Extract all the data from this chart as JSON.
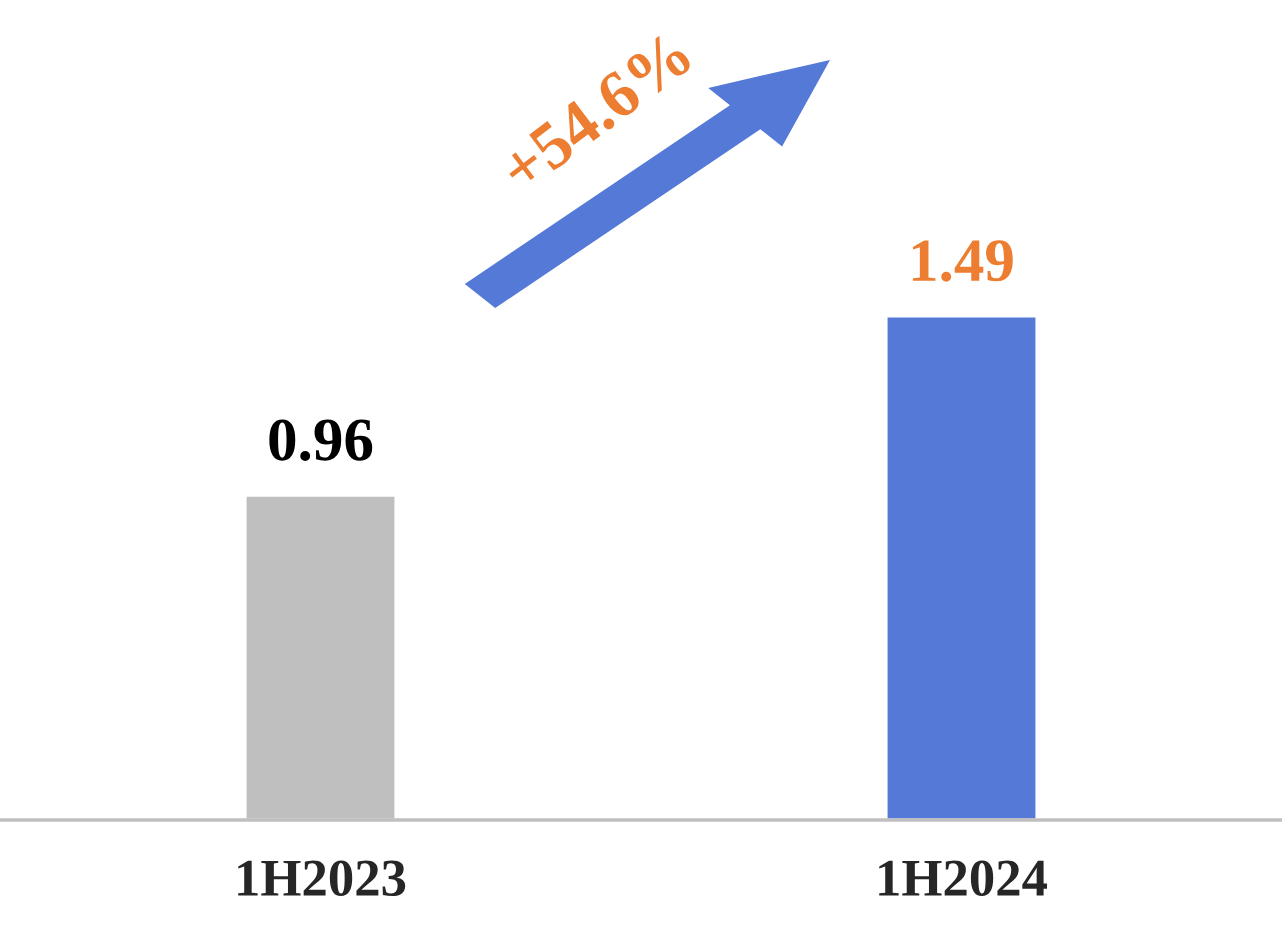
{
  "chart_data": {
    "type": "bar",
    "categories": [
      "1H2023",
      "1H2024"
    ],
    "values": [
      0.96,
      1.49
    ],
    "colors": [
      "#bfbfbf",
      "#5479d6"
    ],
    "data_labels": true,
    "annotations": [
      "+54.6%"
    ]
  }
}
